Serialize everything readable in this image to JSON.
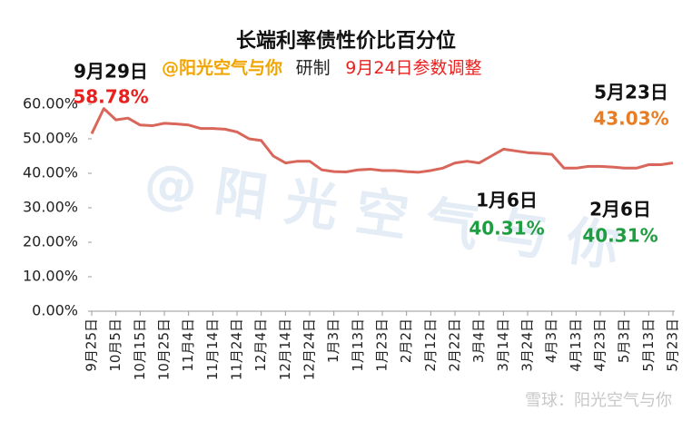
{
  "chart_data": {
    "type": "line",
    "title": "长端利率债性价比百分位",
    "subtitle": {
      "author": "@阳光空气与你",
      "made": "研制",
      "note": "9月24日参数调整"
    },
    "watermark": "@ 阳 光 空 气 与 你",
    "source": "雪球：阳光空气与你",
    "annotations": [
      {
        "date": "9月29日",
        "label": "58.78%",
        "color": "#e8201e"
      },
      {
        "date": "5月23日",
        "label": "43.03%",
        "color": "#e87d24"
      },
      {
        "date": "1月6日",
        "label": "40.31%",
        "color": "#1e9e40"
      },
      {
        "date": "2月6日",
        "label": "40.31%",
        "color": "#1e9e40"
      }
    ],
    "categories": [
      "9月25日",
      null,
      "10月5日",
      null,
      "10月15日",
      null,
      "10月25日",
      null,
      "11月4日",
      null,
      "11月14日",
      null,
      "11月24日",
      null,
      "12月4日",
      null,
      "12月14日",
      null,
      "12月24日",
      null,
      "1月3日",
      null,
      "1月13日",
      null,
      "1月23日",
      null,
      "2月2日",
      null,
      "2月12日",
      null,
      "2月22日",
      null,
      "3月4日",
      null,
      "3月14日",
      null,
      "3月24日",
      null,
      "4月3日",
      null,
      "4月13日",
      null,
      "4月23日",
      null,
      "5月3日",
      null,
      "5月13日",
      null,
      "5月23日"
    ],
    "series": [
      {
        "color": "#d9665a",
        "values": [
          51.5,
          58.78,
          55.5,
          56,
          54,
          53.8,
          54.5,
          54.3,
          54,
          53,
          53,
          52.8,
          52,
          50,
          49.5,
          45,
          43,
          43.5,
          43.5,
          41,
          40.5,
          40.4,
          41,
          41.2,
          40.8,
          40.8,
          40.5,
          40.31,
          40.8,
          41.5,
          43,
          43.5,
          43,
          45,
          47,
          46.5,
          46,
          45.8,
          45.5,
          41.5,
          41.5,
          42,
          42,
          41.8,
          41.5,
          41.5,
          42.5,
          42.5,
          43.03
        ]
      }
    ],
    "ylim": [
      0,
      65
    ],
    "yticks": [
      {
        "value": 0,
        "label": "0.00%"
      },
      {
        "value": 10,
        "label": "10.00%"
      },
      {
        "value": 20,
        "label": "20.00%"
      },
      {
        "value": 30,
        "label": "30.00%"
      },
      {
        "value": 40,
        "label": "40.00%"
      },
      {
        "value": 50,
        "label": "50.00%"
      },
      {
        "value": 60,
        "label": "60.00%"
      }
    ]
  }
}
